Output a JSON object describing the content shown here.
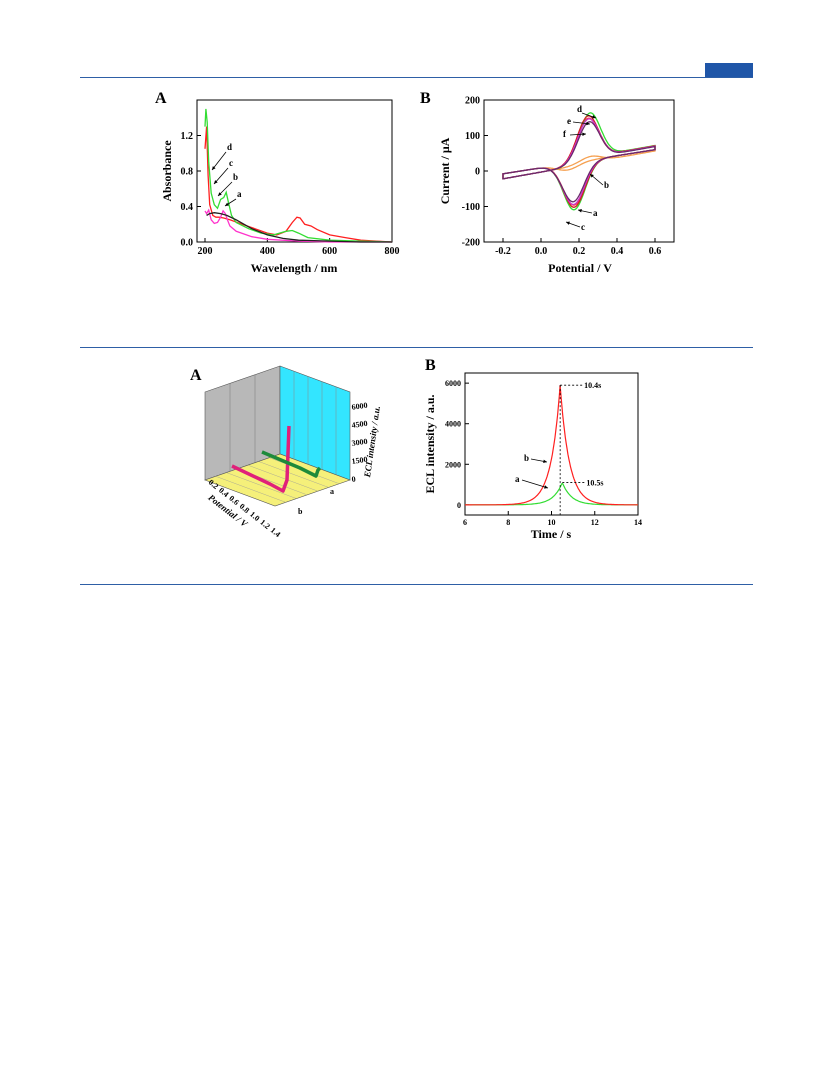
{
  "header_bar_color": "#1f56a8",
  "rule_color": "#2e5fa6",
  "chart_data": [
    {
      "type": "line",
      "panel": "A",
      "xlabel": "Wavelength / nm",
      "ylabel": "Absorbance",
      "xlim": [
        200,
        800
      ],
      "ylim": [
        0.0,
        1.6
      ],
      "x_ticks": [
        "200",
        "400",
        "600",
        "800"
      ],
      "y_ticks": [
        "0.0",
        "0.4",
        "0.8",
        "1.2"
      ],
      "curve_labels": [
        "d",
        "c",
        "b",
        "a"
      ],
      "series": [
        {
          "color": "#ff2020",
          "x": [
            200,
            205,
            210,
            215,
            225,
            235,
            245,
            260,
            280,
            320,
            360,
            400,
            430,
            460,
            480,
            495,
            505,
            520,
            540,
            560,
            600,
            650,
            700,
            750,
            800
          ],
          "y": [
            1.05,
            1.3,
            0.75,
            0.42,
            0.3,
            0.28,
            0.28,
            0.27,
            0.25,
            0.2,
            0.15,
            0.1,
            0.08,
            0.12,
            0.22,
            0.28,
            0.27,
            0.2,
            0.18,
            0.14,
            0.08,
            0.05,
            0.02,
            0.01,
            0.0
          ]
        },
        {
          "color": "#33dd33",
          "x": [
            200,
            203,
            207,
            212,
            220,
            230,
            240,
            250,
            260,
            268,
            275,
            285,
            300,
            340,
            380,
            420,
            460,
            480,
            500,
            530,
            600,
            700,
            800
          ],
          "y": [
            1.3,
            1.5,
            1.35,
            0.9,
            0.55,
            0.42,
            0.38,
            0.48,
            0.5,
            0.56,
            0.45,
            0.3,
            0.22,
            0.15,
            0.1,
            0.08,
            0.12,
            0.13,
            0.1,
            0.05,
            0.02,
            0.01,
            0.0
          ]
        },
        {
          "color": "#ff33cc",
          "x": [
            200,
            205,
            212,
            220,
            230,
            240,
            250,
            258,
            265,
            272,
            280,
            300,
            350,
            400,
            500,
            600,
            800
          ],
          "y": [
            0.35,
            0.32,
            0.36,
            0.25,
            0.21,
            0.22,
            0.28,
            0.35,
            0.32,
            0.25,
            0.18,
            0.12,
            0.06,
            0.03,
            0.01,
            0.0,
            0.0
          ]
        },
        {
          "color": "#222222",
          "x": [
            205,
            215,
            230,
            250,
            270,
            300,
            350,
            400,
            450,
            500,
            600,
            700,
            800
          ],
          "y": [
            0.3,
            0.32,
            0.33,
            0.32,
            0.3,
            0.25,
            0.15,
            0.08,
            0.04,
            0.02,
            0.01,
            0.0,
            0.0
          ]
        }
      ]
    },
    {
      "type": "line",
      "panel": "B",
      "xlabel": "Potential / V",
      "ylabel": "Current / μA",
      "xlim": [
        -0.3,
        0.7
      ],
      "ylim": [
        -200,
        200
      ],
      "x_ticks": [
        "-0.2",
        "0.0",
        "0.2",
        "0.4",
        "0.6"
      ],
      "y_ticks": [
        "200",
        "100",
        "0",
        "-100",
        "-200"
      ],
      "curve_labels": [
        "d",
        "e",
        "f",
        "b",
        "a",
        "c"
      ],
      "series": [
        {
          "name": "a",
          "color": "#ff3b3b",
          "amp": 120,
          "e0": 0.21,
          "dE": 0.07,
          "bg": [
            -60,
            60
          ]
        },
        {
          "name": "b",
          "color": "#f5a050",
          "amp": 18,
          "e0": 0.2,
          "dE": 0.12,
          "bg": [
            -35,
            45
          ]
        },
        {
          "name": "c",
          "color": "#33dd33",
          "amp": 133,
          "e0": 0.215,
          "dE": 0.08,
          "bg": [
            -55,
            55
          ]
        },
        {
          "name": "d",
          "color": "#d02020",
          "amp": 126,
          "e0": 0.21,
          "dE": 0.07,
          "bg": [
            -60,
            60
          ]
        },
        {
          "name": "e",
          "color": "#cc33cc",
          "amp": 118,
          "e0": 0.21,
          "dE": 0.075,
          "bg": [
            -58,
            58
          ]
        },
        {
          "name": "f",
          "color": "#6a2a6a",
          "amp": 110,
          "e0": 0.21,
          "dE": 0.08,
          "bg": [
            -55,
            56
          ]
        }
      ]
    },
    {
      "type": "3d-line",
      "panel": "A",
      "xlabel": "Potential / V",
      "zlabel": "ECL intensity / a.u.",
      "x_ticks": [
        "0.2",
        "0.4",
        "0.6",
        "0.8",
        "1.0",
        "1.2",
        "1.4"
      ],
      "z_ticks": [
        "0",
        "1500",
        "3000",
        "4500",
        "6000"
      ],
      "y_categories": [
        "a",
        "b"
      ],
      "colors": {
        "a": "#1e8a3a",
        "b": "#e0207a",
        "floor": "#f5f07a",
        "back_wall": "#b8b8b8",
        "right_wall": "#33e5ff"
      }
    },
    {
      "type": "line",
      "panel": "B",
      "xlabel": "Time / s",
      "ylabel": "ECL intensity / a.u.",
      "xlim": [
        6,
        14
      ],
      "ylim": [
        -500,
        6500
      ],
      "x_ticks": [
        "6",
        "8",
        "10",
        "12",
        "14"
      ],
      "y_ticks": [
        "0",
        "2000",
        "4000",
        "6000"
      ],
      "series": [
        {
          "name": "a",
          "color": "#33dd33",
          "peak_time": 10.5,
          "peak": 1100,
          "peak_label": "10.5s"
        },
        {
          "name": "b",
          "color": "#ff2020",
          "peak_time": 10.4,
          "peak": 5900,
          "peak_label": "10.4s"
        }
      ]
    }
  ]
}
